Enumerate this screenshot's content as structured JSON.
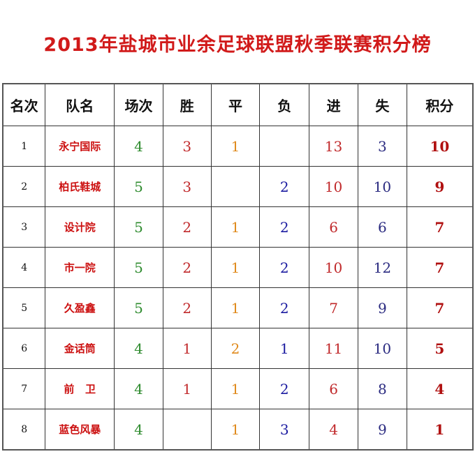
{
  "title": "2013年盐城市业余足球联盟秋季联赛积分榜",
  "headers": [
    "名次",
    "队名",
    "场次",
    "胜",
    "平",
    "负",
    "进",
    "失",
    "积分"
  ],
  "colors": {
    "title": "#d11a1a",
    "team": "#cc1010",
    "played": "#2e8b2e",
    "won": "#c0282a",
    "drawn": "#e08a1c",
    "lost": "#1a1aa0",
    "goals_for": "#c0282a",
    "goals_against": "#2a2a80",
    "points": "#b01010"
  },
  "rows": [
    {
      "rank": "1",
      "team": "永宁国际",
      "played": "4",
      "won": "3",
      "drawn": "1",
      "lost": "",
      "gf": "13",
      "ga": "3",
      "pts": "10"
    },
    {
      "rank": "2",
      "team": "柏氏鞋城",
      "played": "5",
      "won": "3",
      "drawn": "",
      "lost": "2",
      "gf": "10",
      "ga": "10",
      "pts": "9"
    },
    {
      "rank": "3",
      "team": "设计院",
      "played": "5",
      "won": "2",
      "drawn": "1",
      "lost": "2",
      "gf": "6",
      "ga": "6",
      "pts": "7"
    },
    {
      "rank": "4",
      "team": "市一院",
      "played": "5",
      "won": "2",
      "drawn": "1",
      "lost": "2",
      "gf": "10",
      "ga": "12",
      "pts": "7"
    },
    {
      "rank": "5",
      "team": "久盈鑫",
      "played": "5",
      "won": "2",
      "drawn": "1",
      "lost": "2",
      "gf": "7",
      "ga": "9",
      "pts": "7"
    },
    {
      "rank": "6",
      "team": "金话筒",
      "played": "4",
      "won": "1",
      "drawn": "2",
      "lost": "1",
      "gf": "11",
      "ga": "10",
      "pts": "5"
    },
    {
      "rank": "7",
      "team": "前   卫",
      "played": "4",
      "won": "1",
      "drawn": "1",
      "lost": "2",
      "gf": "6",
      "ga": "8",
      "pts": "4"
    },
    {
      "rank": "8",
      "team": "蓝色风暴",
      "played": "4",
      "won": "",
      "drawn": "1",
      "lost": "3",
      "gf": "4",
      "ga": "9",
      "pts": "1"
    }
  ]
}
